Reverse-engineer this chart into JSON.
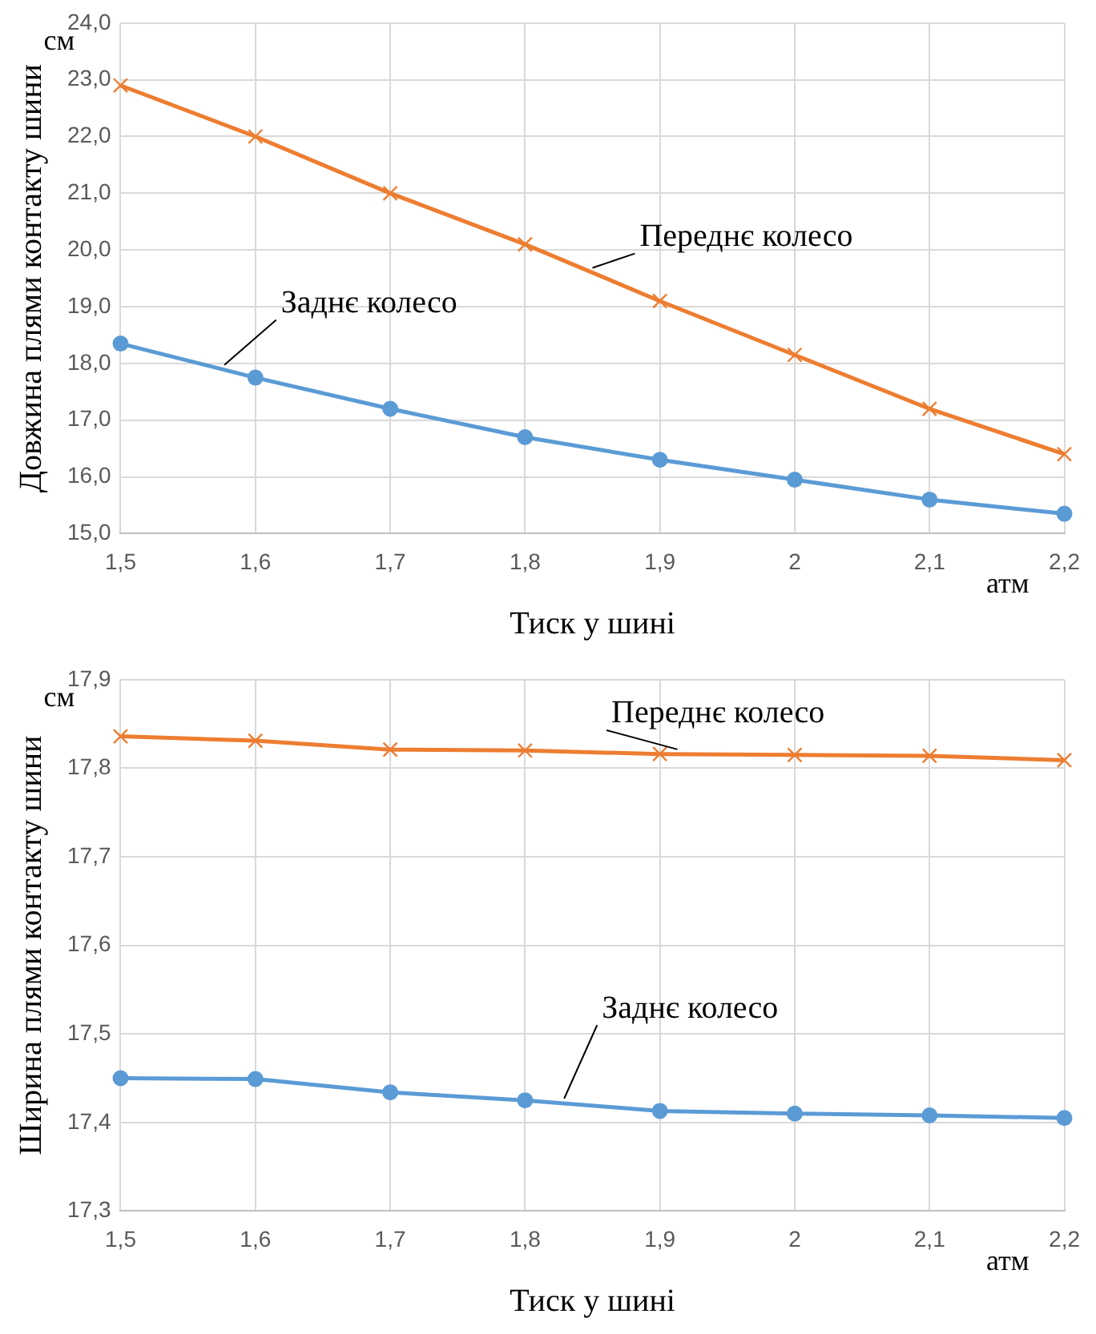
{
  "chart_data": [
    {
      "type": "line",
      "xlabel": "Тиск у шині",
      "ylabel": "Довжина плями контакту шини",
      "annotations": [
        "см",
        "атм"
      ],
      "categories": [
        "1,5",
        "1,6",
        "1,7",
        "1,8",
        "1,9",
        "2",
        "2,1",
        "2,2"
      ],
      "series": [
        {
          "name": "Переднє колесо",
          "color": "#ed7d31",
          "marker": "cross",
          "values": [
            22.9,
            22.0,
            21.0,
            20.1,
            19.1,
            18.15,
            17.2,
            16.4
          ]
        },
        {
          "name": "Заднє колесо",
          "color": "#5b9bd5",
          "marker": "circle",
          "values": [
            18.35,
            17.75,
            17.2,
            16.7,
            16.3,
            15.95,
            15.6,
            15.35
          ]
        }
      ],
      "ylim": [
        15,
        24
      ],
      "yticks": [
        {
          "value": 15,
          "label": "15,0"
        },
        {
          "value": 16,
          "label": "16,0"
        },
        {
          "value": 17,
          "label": "17,0"
        },
        {
          "value": 18,
          "label": "18,0"
        },
        {
          "value": 19,
          "label": "19,0"
        },
        {
          "value": 20,
          "label": "20,0"
        },
        {
          "value": 21,
          "label": "21,0"
        },
        {
          "value": 22,
          "label": "22,0"
        },
        {
          "value": 23,
          "label": "23,0"
        },
        {
          "value": 24,
          "label": "24,0"
        }
      ],
      "grid": true,
      "legend": false
    },
    {
      "type": "line",
      "xlabel": "Тиск у шині",
      "ylabel": "Ширина плями контакту шини",
      "annotations": [
        "см",
        "атм"
      ],
      "categories": [
        "1,5",
        "1,6",
        "1,7",
        "1,8",
        "1,9",
        "2",
        "2,1",
        "2,2"
      ],
      "series": [
        {
          "name": "Переднє колесо",
          "color": "#ed7d31",
          "marker": "cross",
          "values": [
            17.836,
            17.831,
            17.821,
            17.82,
            17.816,
            17.815,
            17.814,
            17.809
          ]
        },
        {
          "name": "Заднє колесо",
          "color": "#5b9bd5",
          "marker": "circle",
          "values": [
            17.45,
            17.449,
            17.434,
            17.425,
            17.413,
            17.41,
            17.408,
            17.405
          ]
        }
      ],
      "ylim": [
        17.3,
        17.9
      ],
      "yticks": [
        {
          "value": 17.3,
          "label": "17,3"
        },
        {
          "value": 17.4,
          "label": "17,4"
        },
        {
          "value": 17.5,
          "label": "17,5"
        },
        {
          "value": 17.6,
          "label": "17,6"
        },
        {
          "value": 17.7,
          "label": "17,7"
        },
        {
          "value": 17.8,
          "label": "17,8"
        },
        {
          "value": 17.9,
          "label": "17,9"
        }
      ],
      "grid": true,
      "legend": false
    }
  ]
}
